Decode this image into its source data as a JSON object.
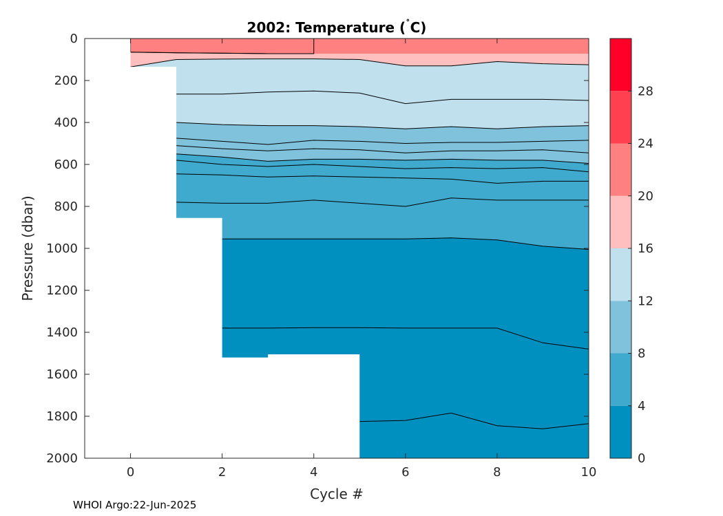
{
  "footer": "WHOI Argo:22-Jun-2025",
  "chart_data": {
    "type": "contour",
    "title_parts": {
      "lead": "2002:  Temperature (",
      "degree": "˚",
      "tail": "C)"
    },
    "xlabel": "Cycle #",
    "ylabel": "Pressure (dbar)",
    "xlim": [
      -1,
      10
    ],
    "ylim": [
      0,
      2000
    ],
    "y_reversed": true,
    "xticks": [
      0,
      2,
      4,
      6,
      8,
      10
    ],
    "yticks": [
      0,
      200,
      400,
      600,
      800,
      1000,
      1200,
      1400,
      1600,
      1800,
      2000
    ],
    "profile_max_depth": [
      {
        "cycle": 0,
        "pressure": 135
      },
      {
        "cycle": 1,
        "pressure": 855
      },
      {
        "cycle": 2,
        "pressure": 1520
      },
      {
        "cycle": 3,
        "pressure": 1505
      },
      {
        "cycle": 4,
        "pressure": 1505
      },
      {
        "cycle": 5,
        "pressure": 2000
      },
      {
        "cycle": 10,
        "pressure": 2000
      }
    ],
    "isotherm_depths": {
      "cycles": [
        0,
        1,
        2,
        3,
        4,
        5,
        6,
        7,
        8,
        9,
        10
      ],
      "levels": [
        {
          "temp": 20,
          "pressure": [
            65,
            68,
            70,
            72,
            72,
            null,
            null,
            null,
            null,
            null,
            null
          ]
        },
        {
          "temp": 16,
          "pressure": [
            135,
            100,
            98,
            97,
            97,
            100,
            130,
            130,
            110,
            120,
            125
          ]
        },
        {
          "temp": 14,
          "pressure": [
            null,
            265,
            265,
            255,
            250,
            260,
            310,
            290,
            290,
            290,
            295
          ]
        },
        {
          "temp": 12,
          "pressure": [
            null,
            400,
            410,
            415,
            415,
            420,
            430,
            420,
            430,
            420,
            415
          ]
        },
        {
          "temp": 10,
          "pressure": [
            null,
            475,
            490,
            505,
            485,
            490,
            500,
            495,
            495,
            490,
            485
          ]
        },
        {
          "temp": 9,
          "pressure": [
            null,
            510,
            525,
            535,
            525,
            530,
            545,
            535,
            535,
            530,
            545
          ]
        },
        {
          "temp": 8,
          "pressure": [
            null,
            550,
            565,
            585,
            575,
            575,
            580,
            575,
            580,
            580,
            595
          ]
        },
        {
          "temp": 7,
          "pressure": [
            null,
            580,
            600,
            610,
            600,
            610,
            620,
            615,
            620,
            615,
            635
          ]
        },
        {
          "temp": 6,
          "pressure": [
            null,
            645,
            650,
            660,
            655,
            660,
            665,
            670,
            690,
            680,
            680
          ]
        },
        {
          "temp": 5,
          "pressure": [
            null,
            780,
            785,
            785,
            770,
            785,
            800,
            760,
            770,
            770,
            770
          ]
        },
        {
          "temp": 4,
          "pressure": [
            null,
            null,
            955,
            955,
            955,
            955,
            955,
            950,
            960,
            990,
            1005
          ]
        },
        {
          "temp": 3,
          "pressure": [
            null,
            null,
            1380,
            1380,
            1378,
            1378,
            1380,
            1380,
            1380,
            1450,
            1480
          ]
        },
        {
          "temp": 2.5,
          "pressure": [
            null,
            null,
            null,
            null,
            null,
            1825,
            1820,
            1785,
            1845,
            1860,
            1835
          ]
        }
      ]
    },
    "colorbar": {
      "ticks": [
        0,
        4,
        8,
        12,
        16,
        20,
        24,
        28
      ],
      "range": [
        0,
        32
      ],
      "bands": [
        {
          "from": 0,
          "to": 4,
          "color": "#0090bf"
        },
        {
          "from": 4,
          "to": 8,
          "color": "#40a9ce"
        },
        {
          "from": 8,
          "to": 12,
          "color": "#80c2dc"
        },
        {
          "from": 12,
          "to": 16,
          "color": "#bfe0ec"
        },
        {
          "from": 16,
          "to": 20,
          "color": "#ffbfbf"
        },
        {
          "from": 20,
          "to": 24,
          "color": "#ff8080"
        },
        {
          "from": 24,
          "to": 28,
          "color": "#ff4050"
        },
        {
          "from": 28,
          "to": 32,
          "color": "#ff0028"
        }
      ]
    }
  }
}
